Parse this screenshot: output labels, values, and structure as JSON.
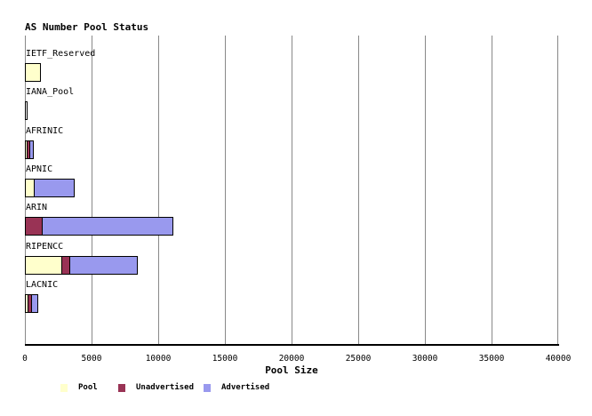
{
  "title": "AS Number Pool Status",
  "chart_data": {
    "type": "bar",
    "orientation": "horizontal",
    "title": "AS Number Pool Status",
    "xlabel": "Pool Size",
    "ylabel": "",
    "xlim": [
      0,
      40000
    ],
    "xticks": [
      0,
      5000,
      10000,
      15000,
      20000,
      25000,
      30000,
      35000,
      40000
    ],
    "grid": "vertical",
    "legend_position": "bottom",
    "categories": [
      "IETF_Reserved",
      "IANA_Pool",
      "AFRINIC",
      "APNIC",
      "ARIN",
      "RIPENCC",
      "LACNIC"
    ],
    "series": [
      {
        "name": "Pool",
        "color": "#FFFFCC",
        "values": [
          1040,
          30,
          70,
          600,
          0,
          2700,
          180
        ]
      },
      {
        "name": "Unadvertised",
        "color": "#993355",
        "values": [
          0,
          0,
          200,
          0,
          1200,
          550,
          180
        ]
      },
      {
        "name": "Advertised",
        "color": "#9999EE",
        "values": [
          0,
          0,
          270,
          3000,
          9800,
          5050,
          520
        ]
      }
    ]
  },
  "colors": {
    "pool": "#FFFFCC",
    "unadvertised": "#993355",
    "advertised": "#9999EE",
    "gridline": "#888888",
    "axis": "#000000",
    "background": "#FFFFFF"
  },
  "legend": {
    "items": [
      {
        "label": "Pool",
        "color": "#FFFFCC"
      },
      {
        "label": "Unadvertised",
        "color": "#993355"
      },
      {
        "label": "Advertised",
        "color": "#9999EE"
      }
    ]
  }
}
